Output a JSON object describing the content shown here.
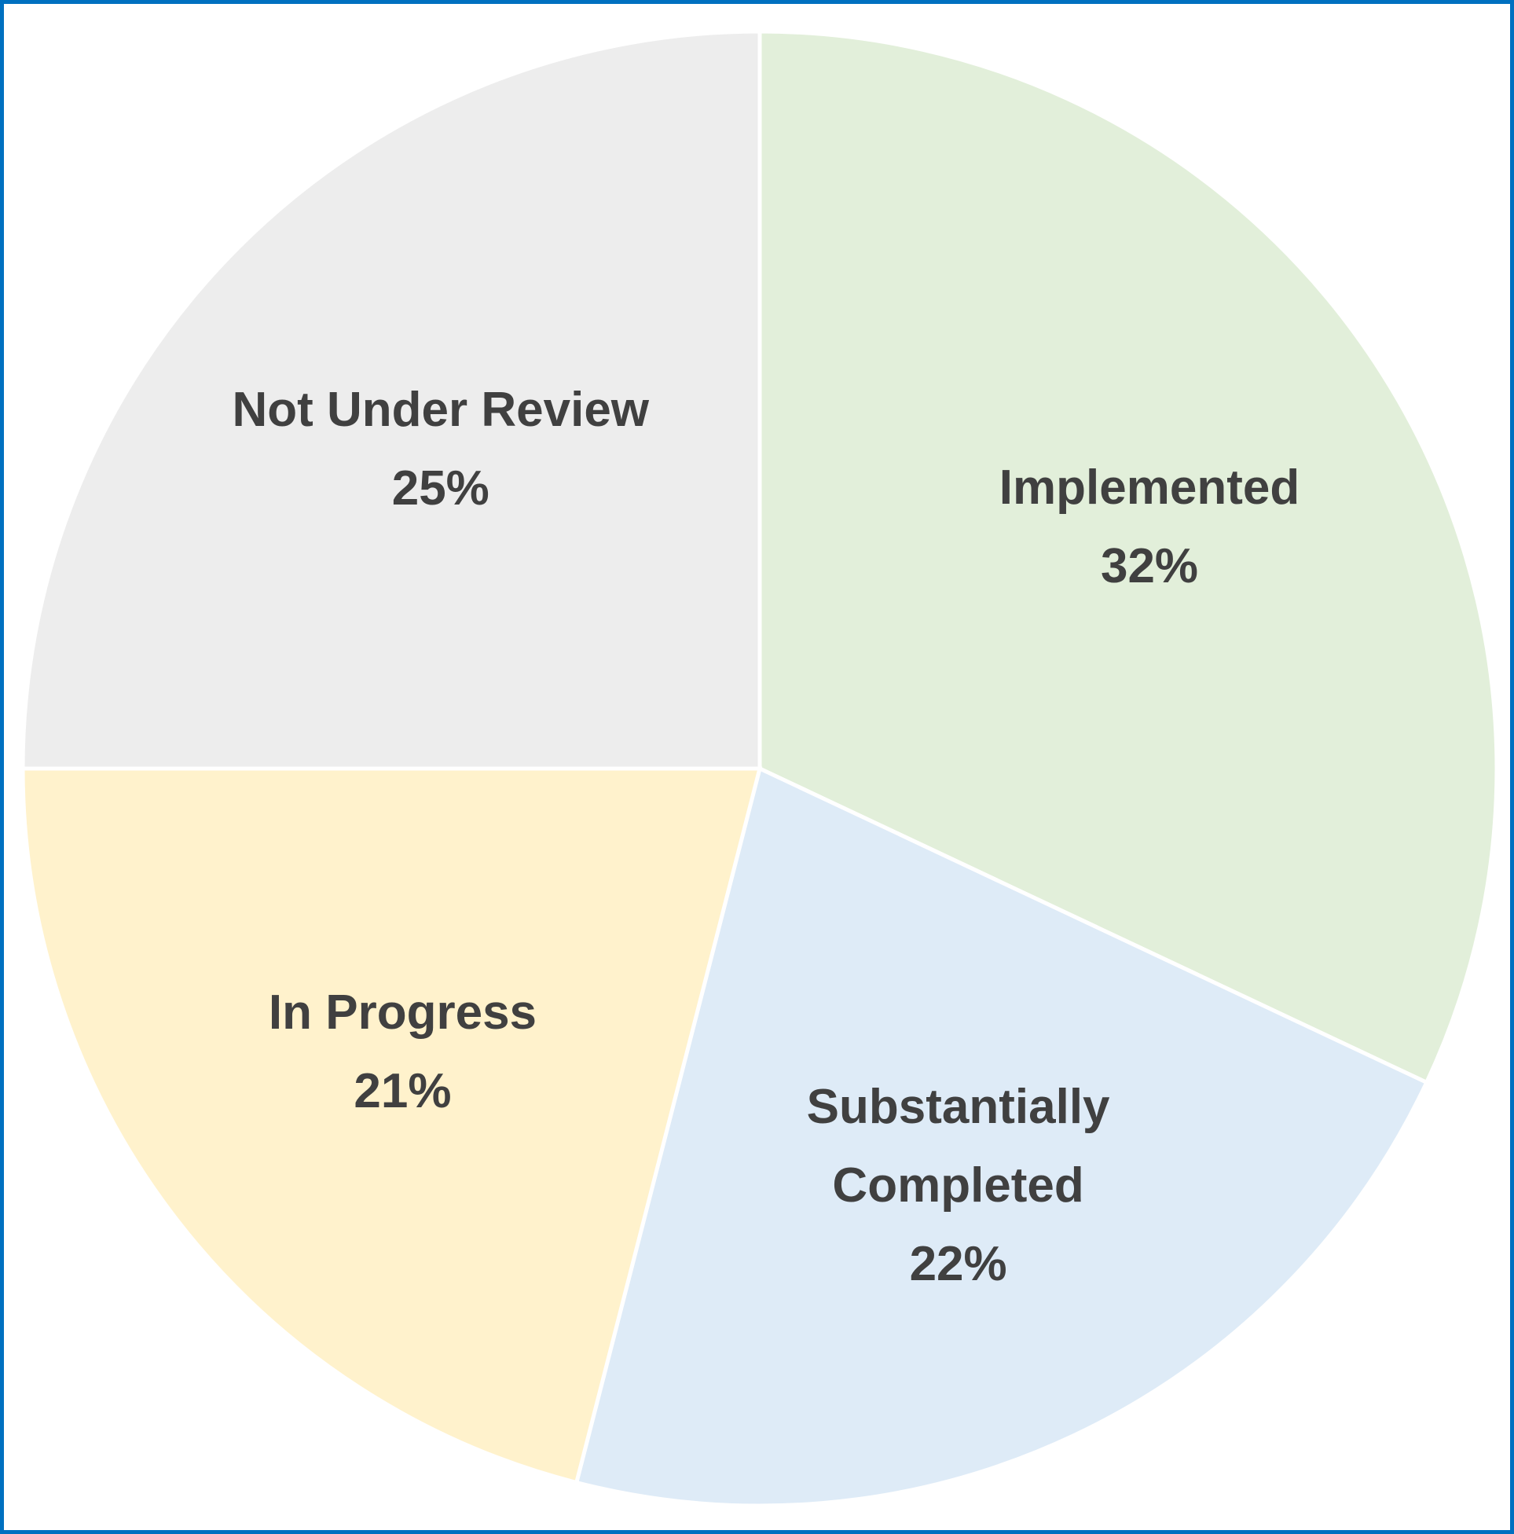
{
  "chart_data": {
    "type": "pie",
    "categories": [
      "Implemented",
      "Substantially Completed",
      "In Progress",
      "Not Under Review"
    ],
    "values": [
      32,
      22,
      21,
      25
    ],
    "value_labels": [
      "32%",
      "22%",
      "21%",
      "25%"
    ],
    "colors": [
      "#e2efda",
      "#deebf7",
      "#fff2cc",
      "#ededed"
    ]
  }
}
